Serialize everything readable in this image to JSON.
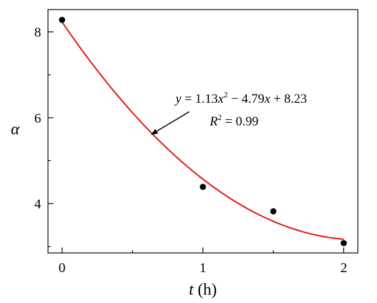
{
  "chart_data": {
    "type": "scatter",
    "title": "",
    "xlabel": {
      "var": "t",
      "unit": " (h)"
    },
    "ylabel": "α",
    "xlim": [
      -0.1,
      2.1
    ],
    "ylim": [
      2.85,
      8.52
    ],
    "x_ticks": [
      0,
      1,
      2
    ],
    "x_tick_labels": [
      "0",
      "1",
      "2"
    ],
    "x_minor_ticks": [
      0.5,
      1.5
    ],
    "y_ticks": [
      4,
      6,
      8
    ],
    "y_tick_labels": [
      "4",
      "6",
      "8"
    ],
    "y_minor_ticks": [
      3,
      5,
      7
    ],
    "grid": false,
    "legend": "none",
    "series": [
      {
        "type": "scatter",
        "color": "#000000",
        "points": [
          {
            "x": 0,
            "y": 8.28
          },
          {
            "x": 1,
            "y": 4.39
          },
          {
            "x": 1.5,
            "y": 3.82
          },
          {
            "x": 2,
            "y": 3.08
          }
        ]
      },
      {
        "type": "fit-line",
        "color": "#e8110f",
        "coefficients": {
          "a": 1.13,
          "b": -4.79,
          "c": 8.23
        },
        "x_range": [
          0,
          2
        ]
      }
    ],
    "annotation": {
      "equation": {
        "lhs": "y",
        "rhs_a": "1.13",
        "rhs_var": "x",
        "rhs_b": " − 4.79",
        "rhs_c": " + 8.23"
      },
      "r2": {
        "label": "R",
        "value": " = 0.99"
      },
      "arrow_target_x": 0.65
    }
  }
}
